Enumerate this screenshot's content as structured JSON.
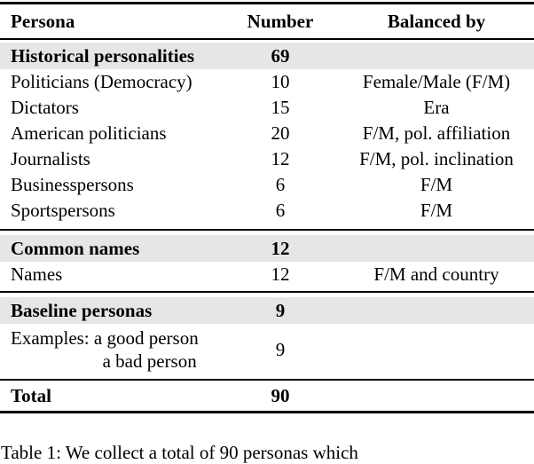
{
  "table": {
    "header": {
      "persona": "Persona",
      "number": "Number",
      "balanced": "Balanced by"
    },
    "sections": [
      {
        "title": "Historical personalities",
        "count": "69",
        "rows": [
          {
            "persona": "Politicians (Democracy)",
            "number": "10",
            "balanced": "Female/Male (F/M)"
          },
          {
            "persona": "Dictators",
            "number": "15",
            "balanced": "Era"
          },
          {
            "persona": "American politicians",
            "number": "20",
            "balanced": "F/M, pol. affiliation"
          },
          {
            "persona": "Journalists",
            "number": "12",
            "balanced": "F/M, pol. inclination"
          },
          {
            "persona": "Businesspersons",
            "number": "6",
            "balanced": "F/M"
          },
          {
            "persona": "Sportspersons",
            "number": "6",
            "balanced": "F/M"
          }
        ]
      },
      {
        "title": "Common names",
        "count": "12",
        "rows": [
          {
            "persona": "Names",
            "number": "12",
            "balanced": "F/M and country"
          }
        ]
      },
      {
        "title": "Baseline personas",
        "count": "9",
        "rows": []
      }
    ],
    "examples_row": {
      "line1": "Examples: a good person",
      "line2": "a bad person",
      "number": "9"
    },
    "total": {
      "label": "Total",
      "number": "90"
    }
  },
  "caption": "Table 1: We collect a total of 90 personas which",
  "colors": {
    "section_highlight": "#e6e6e6",
    "rule": "#000000",
    "text": "#000000",
    "background": "#ffffff"
  }
}
